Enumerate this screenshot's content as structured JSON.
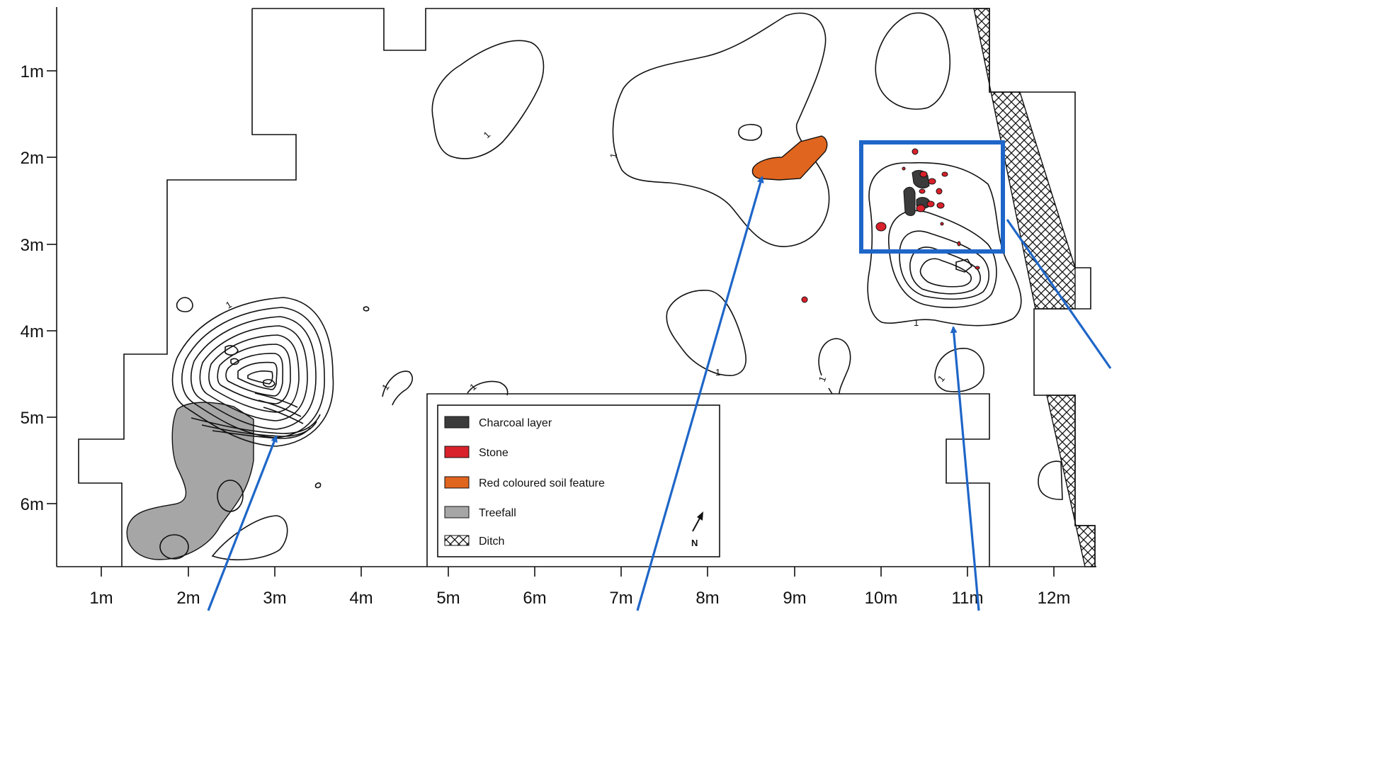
{
  "axes": {
    "x_ticks": [
      "1m",
      "2m",
      "3m",
      "4m",
      "5m",
      "6m",
      "7m",
      "8m",
      "9m",
      "10m",
      "11m",
      "12m"
    ],
    "y_ticks": [
      "1m",
      "2m",
      "3m",
      "4m",
      "5m",
      "6m"
    ]
  },
  "contour_label": "1",
  "legend": {
    "items": [
      {
        "label": "Charcoal layer",
        "color": "#3b3b3b",
        "pattern": "solid"
      },
      {
        "label": "Stone",
        "color": "#d9212b",
        "pattern": "solid"
      },
      {
        "label": "Red coloured soil feature",
        "color": "#e0651f",
        "pattern": "solid"
      },
      {
        "label": "Treefall",
        "color": "#a6a6a6",
        "pattern": "solid"
      },
      {
        "label": "Ditch",
        "color": "#ffffff",
        "pattern": "crosshatch"
      }
    ],
    "north_label": "N"
  },
  "colors": {
    "annotation_blue": "#1e66c8",
    "charcoal": "#3b3b3b",
    "stone": "#d9212b",
    "red_soil": "#e0651f",
    "treefall": "#a6a6a6"
  }
}
